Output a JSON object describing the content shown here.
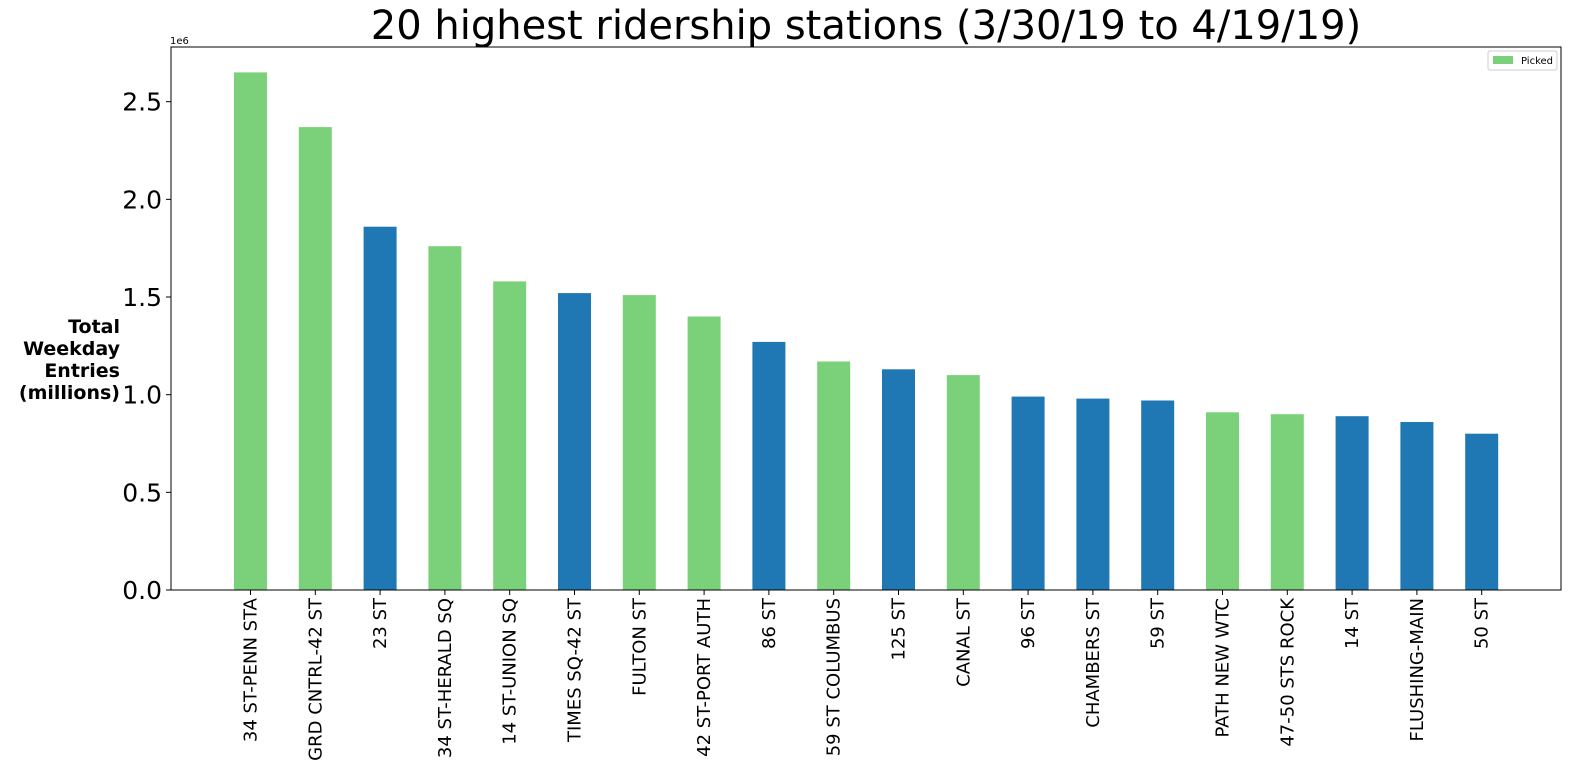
{
  "chart_data": {
    "type": "bar",
    "title": "20 highest ridership stations (3/30/19 to 4/19/19)",
    "xlabel": "",
    "ylabel": "Total Weekday Entries (millions)",
    "ylabel_lines": [
      "Total",
      "Weekday",
      "Entries",
      "(millions)"
    ],
    "y_offset_label": "1e6",
    "ylim": [
      0,
      2.78
    ],
    "yticks": [
      0.0,
      0.5,
      1.0,
      1.5,
      2.0,
      2.5
    ],
    "ytick_labels": [
      "0.0",
      "0.5",
      "1.0",
      "1.5",
      "2.0",
      "2.5"
    ],
    "grid": false,
    "legend": {
      "placement": "top-right",
      "entries": [
        {
          "label": "Picked",
          "color": "#7ad17a"
        }
      ]
    },
    "colors": {
      "picked": "#7ad17a",
      "other": "#1f77b4"
    },
    "categories": [
      "34 ST-PENN STA",
      "GRD CNTRL-42 ST",
      "23 ST",
      "34 ST-HERALD SQ",
      "14 ST-UNION SQ",
      "TIMES SQ-42 ST",
      "FULTON ST",
      "42 ST-PORT AUTH",
      "86 ST",
      "59 ST COLUMBUS",
      "125 ST",
      "CANAL ST",
      "96 ST",
      "CHAMBERS ST",
      "59 ST",
      "PATH NEW WTC",
      "47-50 STS ROCK",
      "14 ST",
      "FLUSHING-MAIN",
      "50 ST"
    ],
    "values": [
      2.65,
      2.37,
      1.86,
      1.76,
      1.58,
      1.52,
      1.51,
      1.4,
      1.27,
      1.17,
      1.13,
      1.1,
      0.99,
      0.98,
      0.97,
      0.91,
      0.9,
      0.89,
      0.86,
      0.8
    ],
    "picked": [
      true,
      true,
      false,
      true,
      true,
      false,
      true,
      true,
      false,
      true,
      false,
      true,
      false,
      false,
      false,
      true,
      true,
      false,
      false,
      false
    ]
  }
}
